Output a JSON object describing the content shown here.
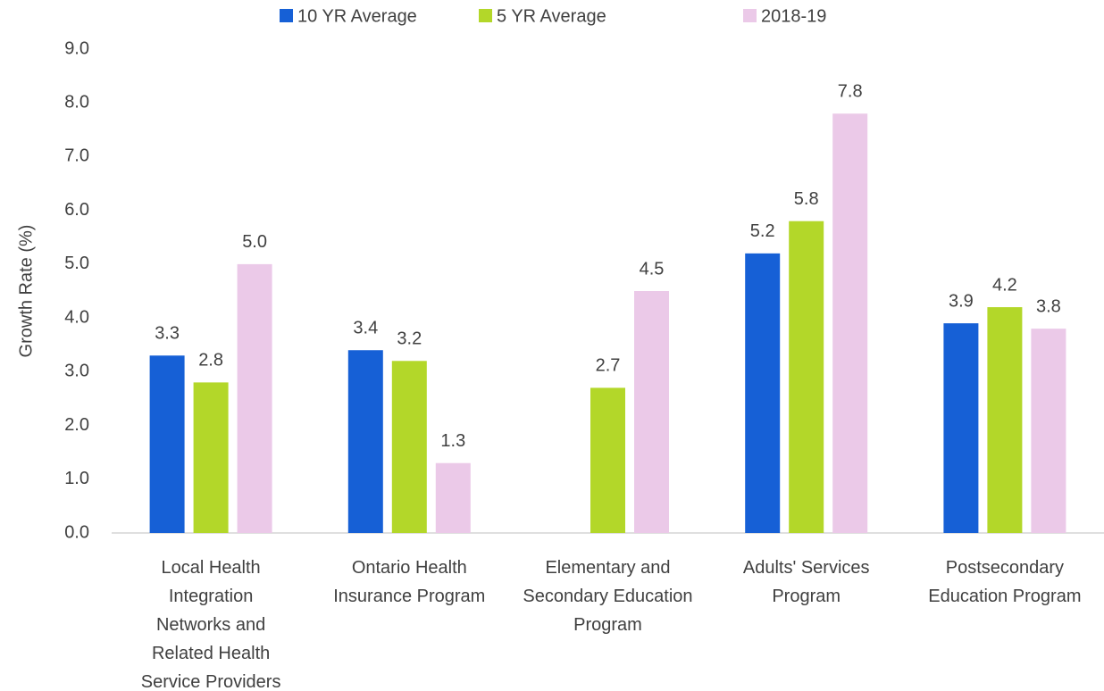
{
  "chart_data": {
    "type": "bar",
    "y_label": "Growth Rate (%)",
    "categories": [
      "Local Health Integration Networks and Related Health Service Providers",
      "Ontario Health Insurance Program",
      "Elementary and Secondary Education Program",
      "Adults' Services Program",
      "Postsecondary Education Program"
    ],
    "series": [
      {
        "name": "10 YR Average",
        "color": "#1660d6",
        "values": [
          3.3,
          3.4,
          null,
          5.2,
          3.9
        ],
        "value_labels": [
          "3.3",
          "3.4",
          null,
          "5.2",
          "3.9"
        ]
      },
      {
        "name": "5 YR Average",
        "color": "#b3d729",
        "values": [
          2.8,
          3.2,
          2.7,
          5.8,
          4.2
        ],
        "value_labels": [
          "2.8",
          "3.2",
          "2.7",
          "5.8",
          "4.2"
        ]
      },
      {
        "name": "2018-19",
        "color": "#ebc9e8",
        "values": [
          5.0,
          1.3,
          4.5,
          7.8,
          3.8
        ],
        "value_labels": [
          "5.0",
          "1.3",
          "4.5",
          "7.8",
          "3.8"
        ]
      }
    ],
    "ylim": [
      0,
      9
    ],
    "yticks": [
      {
        "value": 0,
        "label": "0.0"
      },
      {
        "value": 1,
        "label": "1.0"
      },
      {
        "value": 2,
        "label": "2.0"
      },
      {
        "value": 3,
        "label": "3.0"
      },
      {
        "value": 4,
        "label": "4.0"
      },
      {
        "value": 5,
        "label": "5.0"
      },
      {
        "value": 6,
        "label": "6.0"
      },
      {
        "value": 7,
        "label": "7.0"
      },
      {
        "value": 8,
        "label": "8.0"
      },
      {
        "value": 9,
        "label": "9.0"
      }
    ],
    "grid": false,
    "legend": "top"
  }
}
